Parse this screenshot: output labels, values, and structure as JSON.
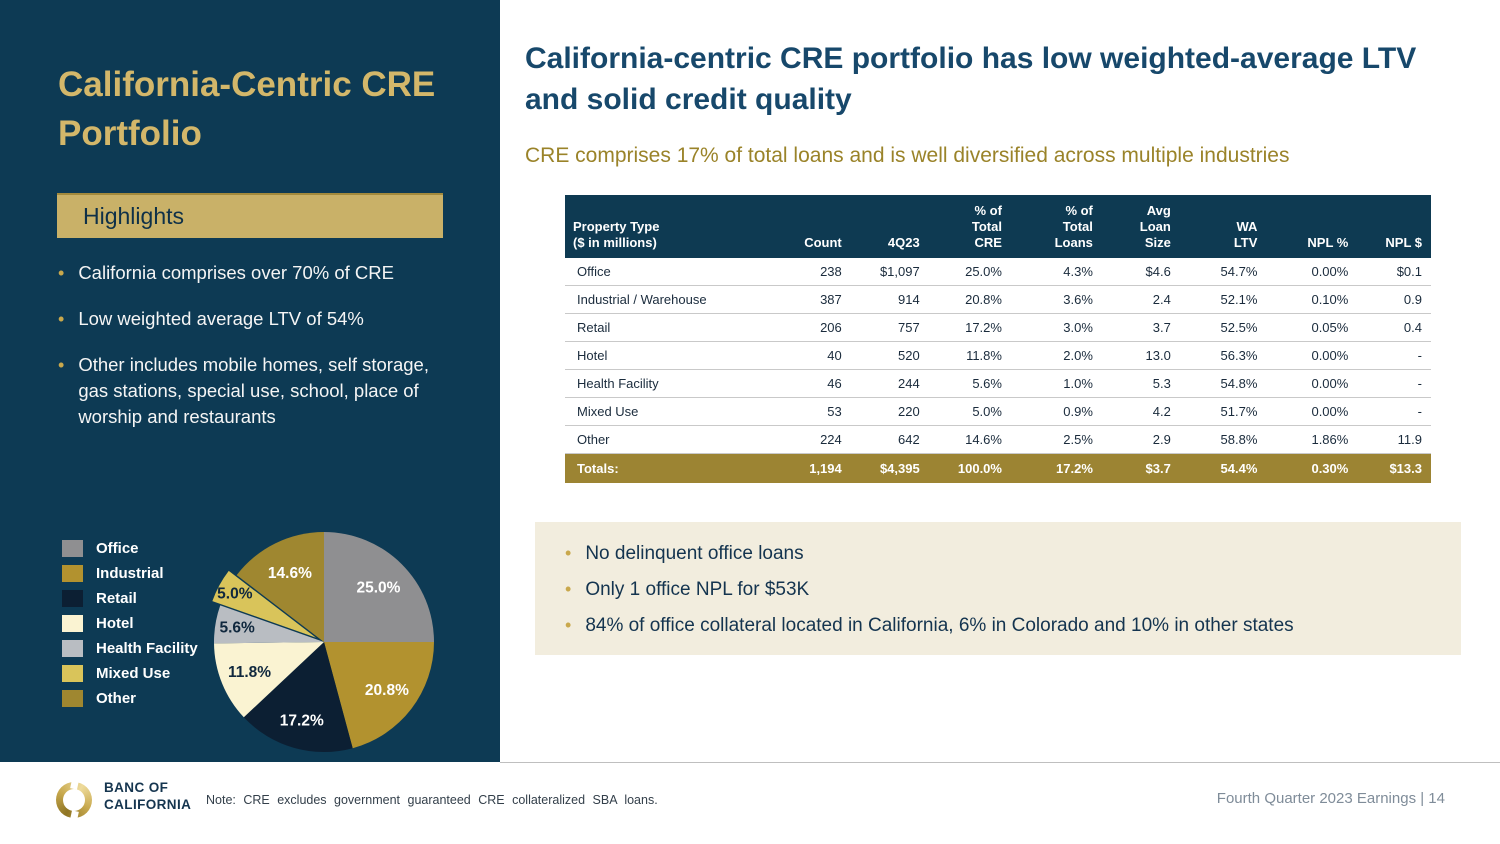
{
  "colors": {
    "navy": "#0d3a54",
    "gold_title": "#d3b76a",
    "highlights_bg": "#c9b168",
    "totals_bg": "#9c8433",
    "subtitle_gold": "#9a8329",
    "headline_navy": "#17486b",
    "callout_bg": "#f2edde"
  },
  "sidebar": {
    "title": "California-Centric CRE Portfolio",
    "highlights_label": "Highlights",
    "bullets": [
      "California comprises over 70% of CRE",
      "Low weighted average LTV of 54%",
      "Other includes mobile homes, self storage, gas stations, special use, school, place of worship and restaurants"
    ]
  },
  "main": {
    "headline": "California-centric CRE portfolio has low weighted-average LTV and solid credit quality",
    "subtitle": "CRE comprises 17% of total loans and is well diversified across multiple industries",
    "table": {
      "columns": [
        {
          "lines": [
            "Property Type",
            "($ in millions)"
          ]
        },
        {
          "lines": [
            "Count"
          ]
        },
        {
          "lines": [
            "4Q23"
          ]
        },
        {
          "lines": [
            "% of",
            "Total",
            "CRE"
          ]
        },
        {
          "lines": [
            "% of",
            "Total",
            "Loans"
          ]
        },
        {
          "lines": [
            "Avg",
            "Loan",
            "Size"
          ]
        },
        {
          "lines": [
            "WA",
            "LTV"
          ]
        },
        {
          "lines": [
            "NPL %"
          ]
        },
        {
          "lines": [
            "NPL $"
          ]
        }
      ],
      "rows": [
        [
          "Office",
          "238",
          "$1,097",
          "25.0%",
          "4.3%",
          "$4.6",
          "54.7%",
          "0.00%",
          "$0.1"
        ],
        [
          "Industrial / Warehouse",
          "387",
          "914",
          "20.8%",
          "3.6%",
          "2.4",
          "52.1%",
          "0.10%",
          "0.9"
        ],
        [
          "Retail",
          "206",
          "757",
          "17.2%",
          "3.0%",
          "3.7",
          "52.5%",
          "0.05%",
          "0.4"
        ],
        [
          "Hotel",
          "40",
          "520",
          "11.8%",
          "2.0%",
          "13.0",
          "56.3%",
          "0.00%",
          "-"
        ],
        [
          "Health Facility",
          "46",
          "244",
          "5.6%",
          "1.0%",
          "5.3",
          "54.8%",
          "0.00%",
          "-"
        ],
        [
          "Mixed Use",
          "53",
          "220",
          "5.0%",
          "0.9%",
          "4.2",
          "51.7%",
          "0.00%",
          "-"
        ],
        [
          "Other",
          "224",
          "642",
          "14.6%",
          "2.5%",
          "2.9",
          "58.8%",
          "1.86%",
          "11.9"
        ]
      ],
      "totals": [
        "Totals:",
        "1,194",
        "$4,395",
        "100.0%",
        "17.2%",
        "$3.7",
        "54.4%",
        "0.30%",
        "$13.3"
      ]
    },
    "callouts": [
      "No delinquent office loans",
      "Only 1 office NPL for $53K",
      "84% of office collateral located in California, 6% in Colorado and 10% in other states"
    ]
  },
  "chart_data": {
    "type": "pie",
    "title": "",
    "categories": [
      "Office",
      "Industrial",
      "Retail",
      "Hotel",
      "Health Facility",
      "Mixed Use",
      "Other"
    ],
    "values": [
      25.0,
      20.8,
      17.2,
      11.8,
      5.6,
      5.0,
      14.6
    ],
    "labels": [
      "25.0%",
      "20.8%",
      "17.2%",
      "11.8%",
      "5.6%",
      "5.0%",
      "14.6%"
    ],
    "colors": [
      "#8f8f91",
      "#b2922f",
      "#0c1f33",
      "#faf3d2",
      "#b9bdc2",
      "#d9c45a",
      "#9f8730"
    ],
    "label_colors": [
      "#ffffff",
      "#ffffff",
      "#ffffff",
      "#10283e",
      "#10283e",
      "#10283e",
      "#ffffff"
    ],
    "start_angle_deg": 0,
    "direction": "clockwise",
    "exploded_slice": "Mixed Use",
    "legend_position": "left"
  },
  "footer": {
    "brand_line1": "BANC OF",
    "brand_line2": "CALIFORNIA",
    "note": "Note: CRE excludes government guaranteed CRE collateralized SBA loans.",
    "page_label": "Fourth Quarter 2023 Earnings |  14"
  }
}
